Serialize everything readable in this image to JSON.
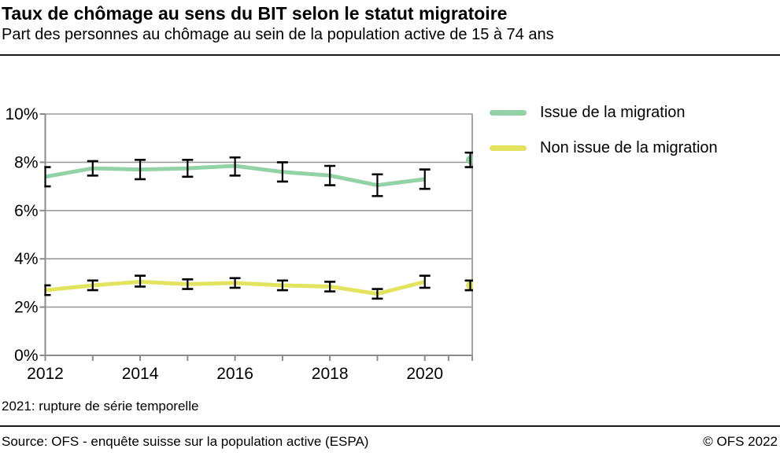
{
  "header": {
    "title": "Taux de chômage au sens du BIT selon le statut migratoire",
    "subtitle": "Part des personnes au chômage au sein de la population active de 15 à 74 ans"
  },
  "legend": {
    "items": [
      {
        "label": "Issue de la migration",
        "color": "#92D2A6"
      },
      {
        "label": "Non issue de la migration",
        "color": "#E2E45F"
      }
    ]
  },
  "chart_data": {
    "type": "line",
    "title": "Taux de chômage au sens du BIT selon le statut migratoire",
    "subtitle": "Part des personnes au chômage au sein de la population active de 15 à 74 ans",
    "x": [
      2012,
      2013,
      2014,
      2015,
      2016,
      2017,
      2018,
      2019,
      2020,
      2021
    ],
    "x_labeled_years": [
      2012,
      2014,
      2016,
      2018,
      2020
    ],
    "y_ticks": [
      0,
      2,
      4,
      6,
      8,
      10
    ],
    "y_tick_labels": [
      "0%",
      "2%",
      "4%",
      "6%",
      "8%",
      "10%"
    ],
    "ylim": [
      0,
      10
    ],
    "unit": "%",
    "grid": "horizontal",
    "legend_position": "right",
    "error_bars": true,
    "series_break": {
      "year": 2021,
      "reason": "rupture de série temporelle"
    },
    "series": [
      {
        "name": "Issue de la migration",
        "color": "#92D2A6",
        "values": [
          7.4,
          7.75,
          7.7,
          7.75,
          7.85,
          7.6,
          7.45,
          7.05,
          7.3,
          8.1
        ],
        "err_low": [
          7.0,
          7.45,
          7.3,
          7.4,
          7.45,
          7.2,
          7.05,
          6.6,
          6.9,
          7.8
        ],
        "err_high": [
          7.8,
          8.05,
          8.1,
          8.1,
          8.2,
          8.0,
          7.85,
          7.5,
          7.7,
          8.4
        ]
      },
      {
        "name": "Non issue de la migration",
        "color": "#E2E45F",
        "values": [
          2.7,
          2.9,
          3.05,
          2.95,
          3.0,
          2.9,
          2.85,
          2.55,
          3.05,
          2.9
        ],
        "err_low": [
          2.5,
          2.7,
          2.85,
          2.75,
          2.8,
          2.7,
          2.65,
          2.35,
          2.8,
          2.7
        ],
        "err_high": [
          2.9,
          3.1,
          3.3,
          3.15,
          3.2,
          3.1,
          3.05,
          2.75,
          3.3,
          3.1
        ]
      }
    ]
  },
  "footnote": "2021: rupture de série temporelle",
  "footer": {
    "source": "Source: OFS - enquête suisse sur la population active (ESPA)",
    "copyright": "© OFS 2022"
  }
}
